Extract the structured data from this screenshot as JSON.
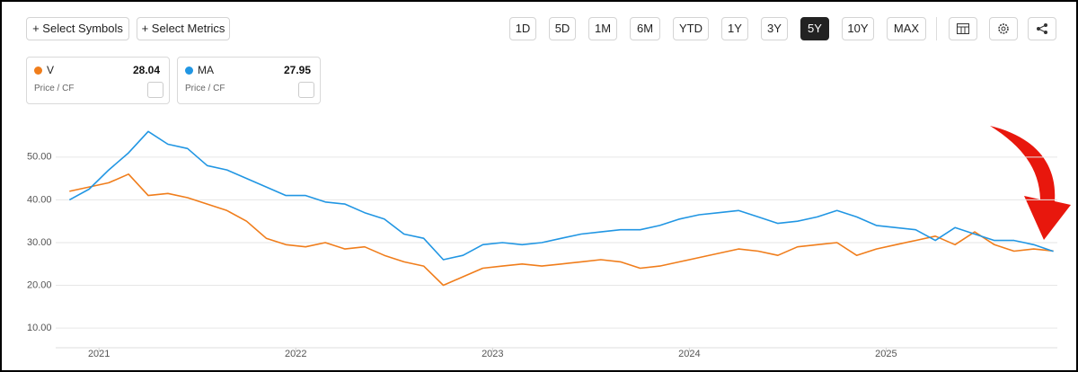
{
  "toolbar": {
    "left_buttons": [
      "+ Select Symbols",
      "+ Select Metrics"
    ],
    "ranges": [
      "1D",
      "5D",
      "1M",
      "6M",
      "YTD",
      "1Y",
      "3Y",
      "5Y",
      "10Y",
      "MAX"
    ],
    "active_range": 7
  },
  "chart_data": {
    "type": "line",
    "x": [
      2020.85,
      2020.95,
      2021.05,
      2021.15,
      2021.25,
      2021.35,
      2021.45,
      2021.55,
      2021.65,
      2021.75,
      2021.85,
      2021.95,
      2022.05,
      2022.15,
      2022.25,
      2022.35,
      2022.45,
      2022.55,
      2022.65,
      2022.75,
      2022.85,
      2022.95,
      2023.05,
      2023.15,
      2023.25,
      2023.35,
      2023.45,
      2023.55,
      2023.65,
      2023.75,
      2023.85,
      2023.95,
      2024.05,
      2024.15,
      2024.25,
      2024.35,
      2024.45,
      2024.55,
      2024.65,
      2024.75,
      2024.85,
      2024.95,
      2025.05,
      2025.15,
      2025.25,
      2025.35,
      2025.45,
      2025.55,
      2025.65,
      2025.75,
      2025.85
    ],
    "series": [
      {
        "name": "V",
        "metric": "Price / CF",
        "color": "#f07d1b",
        "values": [
          42,
          43,
          44,
          46,
          41,
          41.5,
          40.5,
          39,
          37.5,
          35,
          31,
          29.5,
          29,
          30,
          28.5,
          29,
          27,
          25.5,
          24.5,
          20,
          22,
          24,
          24.5,
          25,
          24.5,
          25,
          25.5,
          26,
          25.5,
          24,
          24.5,
          25.5,
          26.5,
          27.5,
          28.5,
          28,
          27,
          29,
          29.5,
          30,
          27,
          28.5,
          29.5,
          30.5,
          31.5,
          29.5,
          32.5,
          29.5,
          28,
          28.5,
          28.04
        ]
      },
      {
        "name": "MA",
        "metric": "Price / CF",
        "color": "#2196e3",
        "values": [
          40,
          42.5,
          47,
          51,
          56,
          53,
          52,
          48,
          47,
          45,
          43,
          41,
          41,
          39.5,
          39,
          37,
          35.5,
          32,
          31,
          26,
          27,
          29.5,
          30,
          29.5,
          30,
          31,
          32,
          32.5,
          33,
          33,
          34,
          35.5,
          36.5,
          37,
          37.5,
          36,
          34.5,
          35,
          36,
          37.5,
          36,
          34,
          33.5,
          33,
          30.5,
          33.5,
          32,
          30.5,
          30.5,
          29.5,
          27.95
        ]
      }
    ],
    "xlim": [
      2020.78,
      2025.87
    ],
    "xticks": [
      2021,
      2022,
      2023,
      2024,
      2025
    ],
    "ylim": [
      5.4,
      59
    ],
    "yticks": [
      {
        "value": 10,
        "label": "10.00"
      },
      {
        "value": 20,
        "label": "20.00"
      },
      {
        "value": 30,
        "label": "30.00"
      },
      {
        "value": 40,
        "label": "40.00"
      },
      {
        "value": 50,
        "label": "50.00"
      }
    ],
    "grid": true
  }
}
